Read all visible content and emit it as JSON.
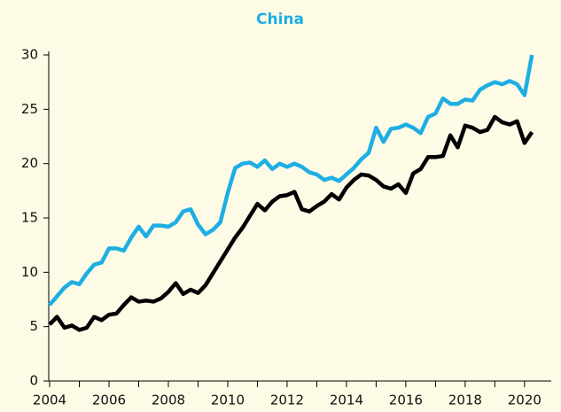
{
  "chart_data": {
    "type": "line",
    "title": "China",
    "x": [
      2004.0,
      2004.25,
      2004.5,
      2004.75,
      2005.0,
      2005.25,
      2005.5,
      2005.75,
      2006.0,
      2006.25,
      2006.5,
      2006.75,
      2007.0,
      2007.25,
      2007.5,
      2007.75,
      2008.0,
      2008.25,
      2008.5,
      2008.75,
      2009.0,
      2009.25,
      2009.5,
      2009.75,
      2010.0,
      2010.25,
      2010.5,
      2010.75,
      2011.0,
      2011.25,
      2011.5,
      2011.75,
      2012.0,
      2012.25,
      2012.5,
      2012.75,
      2013.0,
      2013.25,
      2013.5,
      2013.75,
      2014.0,
      2014.25,
      2014.5,
      2014.75,
      2015.0,
      2015.25,
      2015.5,
      2015.75,
      2016.0,
      2016.25,
      2016.5,
      2016.75,
      2017.0,
      2017.25,
      2017.5,
      2017.75,
      2018.0,
      2018.25,
      2018.5,
      2018.75,
      2019.0,
      2019.25,
      2019.5,
      2019.75,
      2020.0,
      2020.25
    ],
    "series": [
      {
        "color": "#1eaee4",
        "values": [
          7.0,
          7.8,
          8.6,
          9.1,
          8.9,
          9.9,
          10.7,
          10.9,
          12.2,
          12.2,
          12.0,
          13.2,
          14.2,
          13.3,
          14.3,
          14.3,
          14.2,
          14.6,
          15.6,
          15.8,
          14.4,
          13.5,
          13.9,
          14.6,
          17.3,
          19.6,
          20.0,
          20.1,
          19.7,
          20.3,
          19.5,
          20.0,
          19.7,
          20.0,
          19.7,
          19.2,
          19.0,
          18.5,
          18.7,
          18.4,
          19.0,
          19.6,
          20.4,
          21.0,
          23.3,
          22.0,
          23.2,
          23.3,
          23.6,
          23.3,
          22.8,
          24.3,
          24.6,
          26.0,
          25.5,
          25.5,
          25.9,
          25.8,
          26.8,
          27.2,
          27.5,
          27.3,
          27.6,
          27.3,
          26.3,
          30.0
        ]
      },
      {
        "color": "#000000",
        "values": [
          5.2,
          5.9,
          4.9,
          5.1,
          4.7,
          4.9,
          5.9,
          5.6,
          6.1,
          6.2,
          7.0,
          7.7,
          7.3,
          7.4,
          7.3,
          7.6,
          8.2,
          9.0,
          8.0,
          8.4,
          8.1,
          8.8,
          9.9,
          11.0,
          12.1,
          13.2,
          14.1,
          15.2,
          16.3,
          15.7,
          16.5,
          17.0,
          17.1,
          17.4,
          15.8,
          15.6,
          16.1,
          16.5,
          17.2,
          16.7,
          17.8,
          18.5,
          19.0,
          18.9,
          18.5,
          17.9,
          17.7,
          18.1,
          17.3,
          19.1,
          19.5,
          20.6,
          20.6,
          20.7,
          22.6,
          21.5,
          23.5,
          23.3,
          22.9,
          23.1,
          24.3,
          23.8,
          23.6,
          23.9,
          21.9,
          22.9
        ]
      }
    ],
    "xlim": [
      2003.97,
      2020.9
    ],
    "xticks": [
      2004,
      2006,
      2008,
      2010,
      2012,
      2014,
      2016,
      2018,
      2020
    ],
    "xminor_ticks": [
      2005,
      2007,
      2009,
      2011,
      2013,
      2015,
      2017,
      2019
    ],
    "ylim": [
      0,
      30
    ],
    "yticks": [
      0,
      5,
      10,
      15,
      20,
      25,
      30
    ]
  }
}
